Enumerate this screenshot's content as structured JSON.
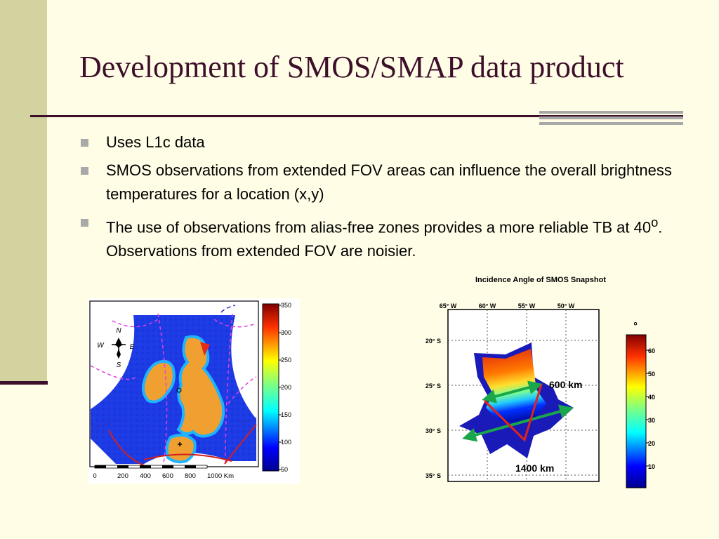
{
  "slide": {
    "title": "Development of SMOS/SMAP data product",
    "bullets": [
      {
        "text": "Uses L1c data"
      },
      {
        "text": "SMOS observations from extended FOV areas can influence the overall brightness temperatures for a location (x,y)"
      },
      {
        "text_before": "The use of observations from alias-free zones provides a more reliable TB at 40",
        "superscript": "o",
        "text_after": ". Observations from extended FOV are noisier."
      }
    ]
  },
  "figure_left": {
    "colorbar_ticks": [
      "350",
      "300",
      "250",
      "200",
      "150",
      "100",
      "50"
    ],
    "scale_labels": [
      "0",
      "200",
      "400",
      "600",
      "800",
      "1000 Km"
    ],
    "compass": {
      "n": "N",
      "s": "S",
      "e": "E",
      "w": "W"
    }
  },
  "figure_right": {
    "title": "Incidence Angle of SMOS Snapshot",
    "lon_labels": [
      "65° W",
      "60° W",
      "55° W",
      "50° W"
    ],
    "lat_labels": [
      "20° S",
      "25° S",
      "30° S",
      "35° S"
    ],
    "annotation_short": "600 km",
    "annotation_long": "1400 km",
    "colorbar_unit": "°",
    "colorbar_ticks": [
      "60",
      "50",
      "40",
      "30",
      "20",
      "10"
    ],
    "colors": {
      "arrow_green": "#1aa64a",
      "arrow_red": "#e0241b"
    }
  }
}
